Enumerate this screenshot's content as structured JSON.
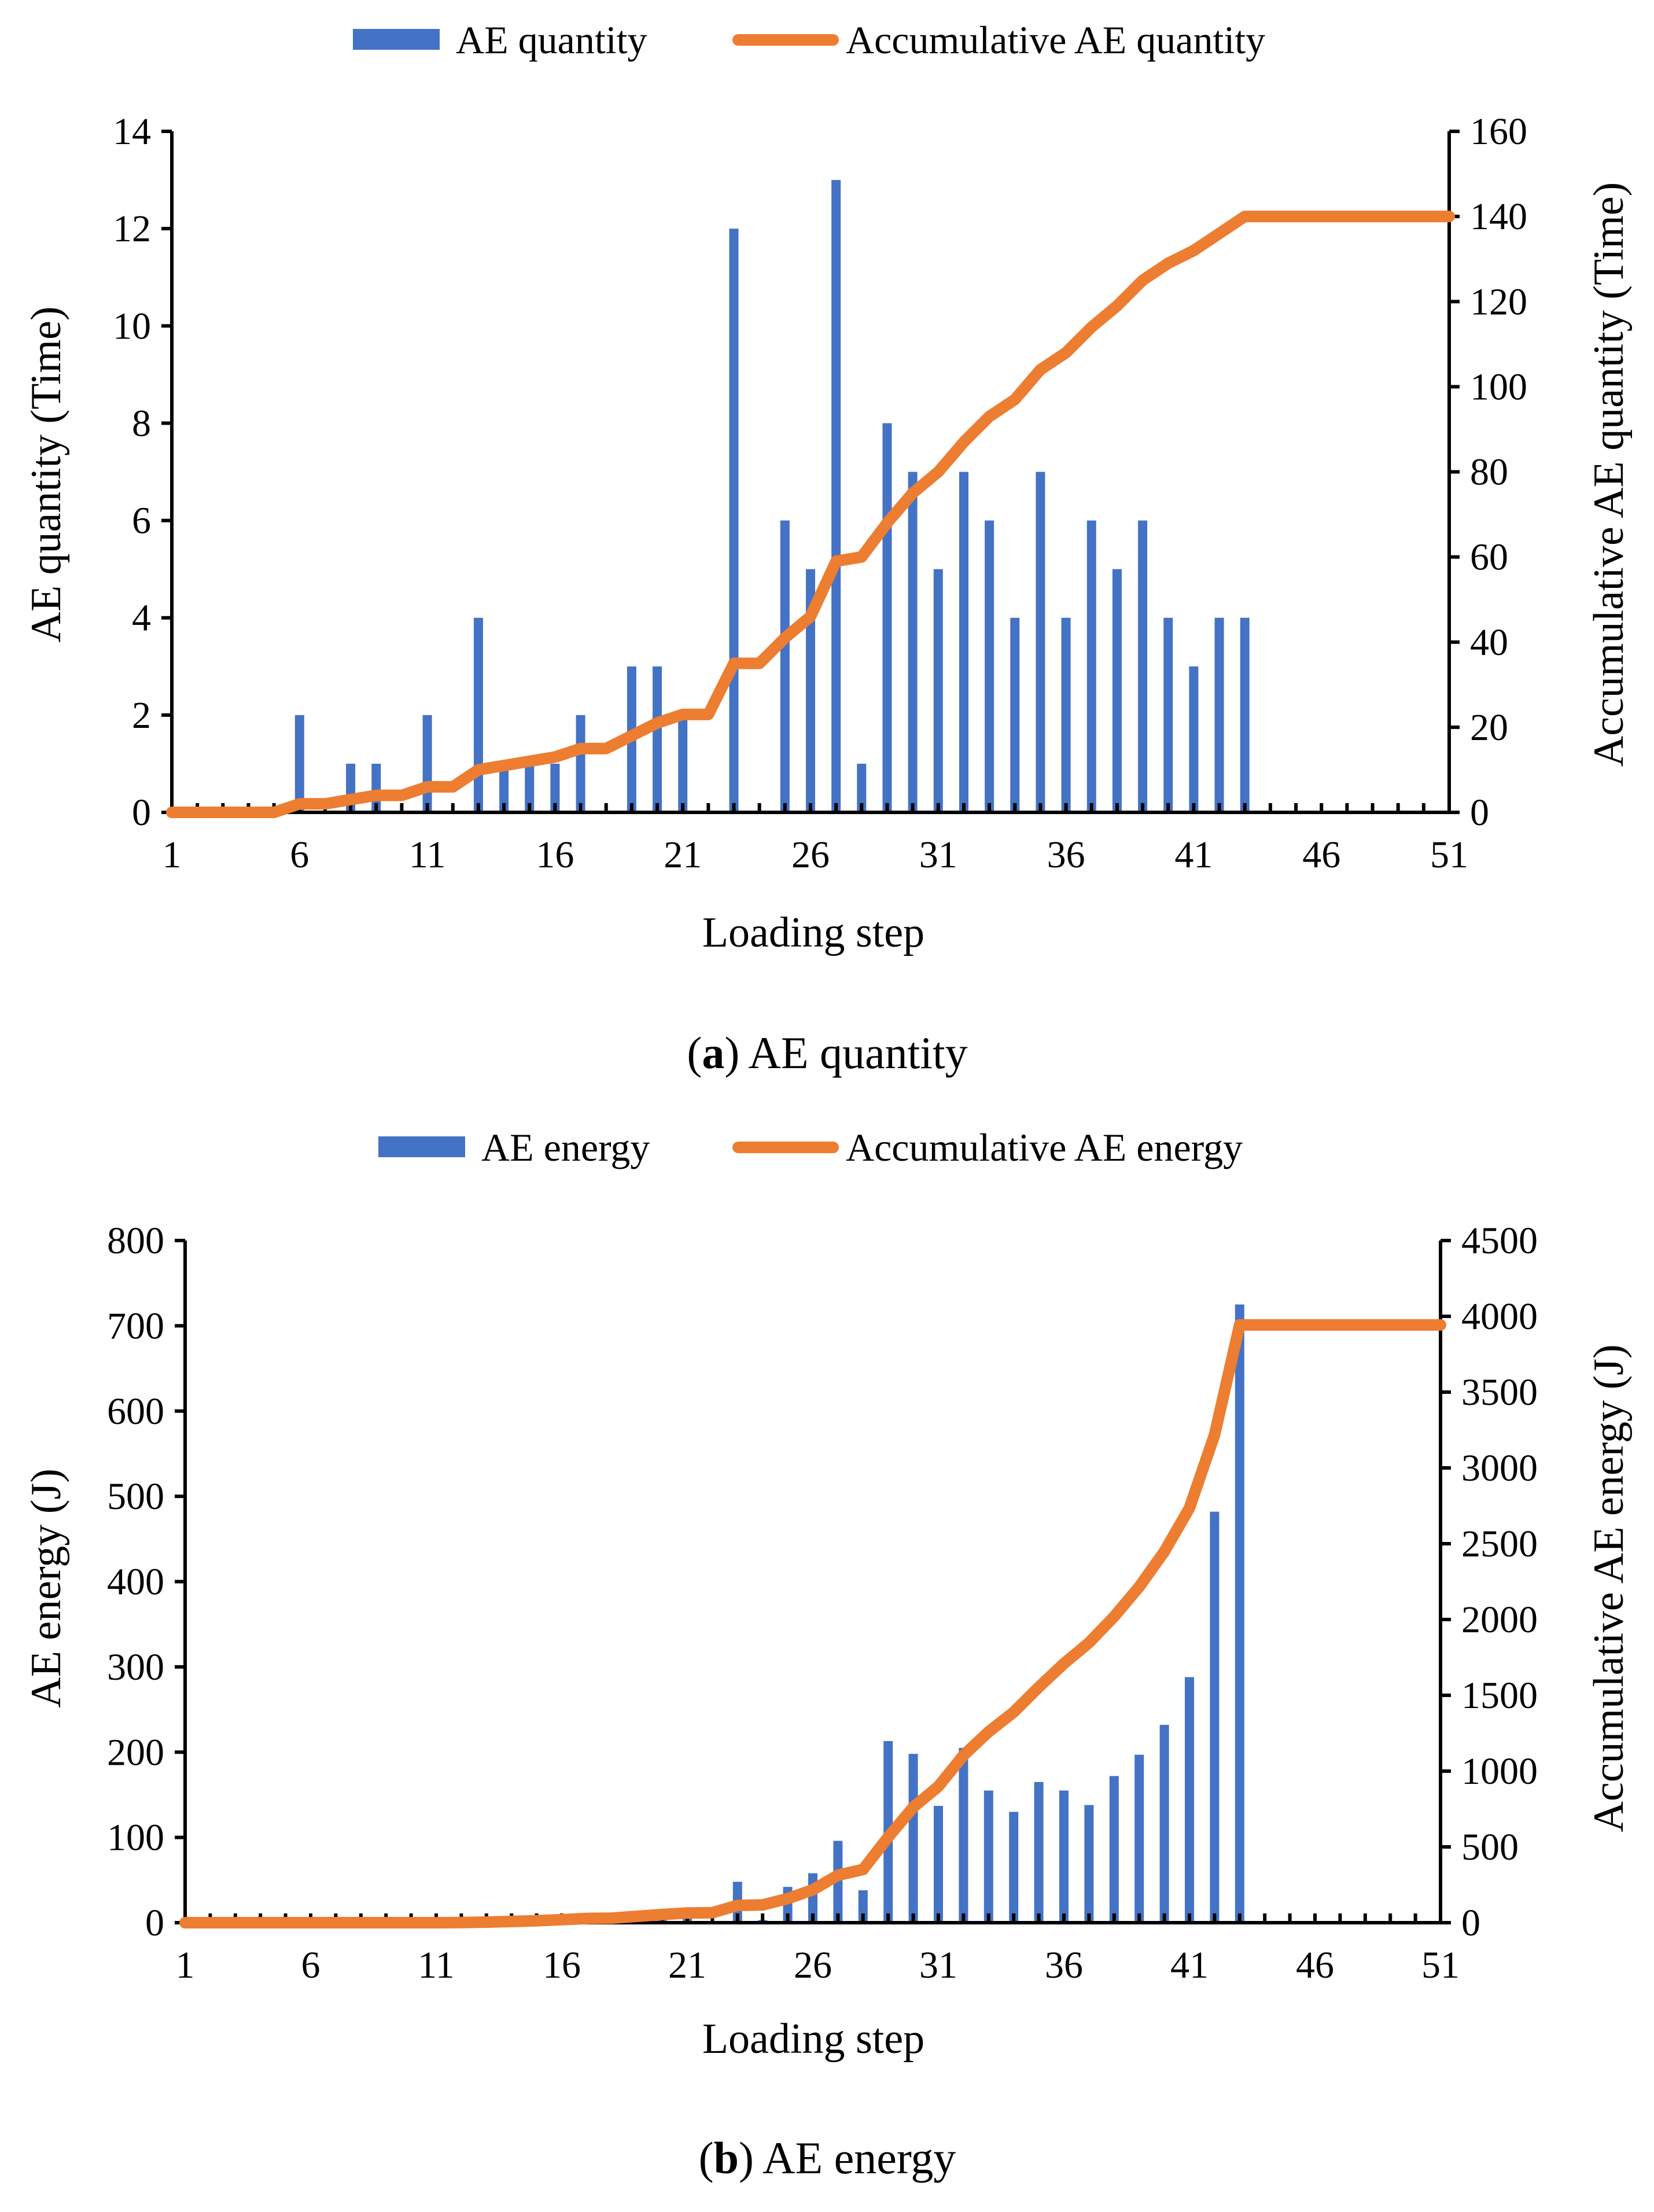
{
  "chart_data": [
    {
      "type": "bar+line",
      "panel": "a",
      "caption_letter": "a",
      "caption_text": " AE quantity",
      "xlabel": "Loading step",
      "ylabel_left": "AE quantity (Time)",
      "ylabel_right": "Accumulative AE quantity (Time)",
      "xlim": [
        1,
        51
      ],
      "x_ticks": [
        "1",
        "6",
        "11",
        "16",
        "21",
        "26",
        "31",
        "36",
        "41",
        "46",
        "51"
      ],
      "ylim_left": [
        0,
        14
      ],
      "y_ticks_left": [
        "0",
        "2",
        "4",
        "6",
        "8",
        "10",
        "12",
        "14"
      ],
      "ylim_right": [
        0,
        160
      ],
      "y_ticks_right": [
        "0",
        "20",
        "40",
        "60",
        "80",
        "100",
        "120",
        "140",
        "160"
      ],
      "legend": {
        "position": "top-center",
        "bar": "AE quantity",
        "line": "Accumulative AE quantity"
      },
      "colors": {
        "bar": "#4472C4",
        "line": "#ED7D31"
      },
      "steps": [
        1,
        2,
        3,
        4,
        5,
        6,
        7,
        8,
        9,
        10,
        11,
        12,
        13,
        14,
        15,
        16,
        17,
        18,
        19,
        20,
        21,
        22,
        23,
        24,
        25,
        26,
        27,
        28,
        29,
        30,
        31,
        32,
        33,
        34,
        35,
        36,
        37,
        38,
        39,
        40,
        41,
        42,
        43,
        44,
        45,
        46,
        47,
        48,
        49,
        50,
        51
      ],
      "bar_values": [
        0,
        0,
        0,
        0,
        0,
        2,
        0,
        1,
        1,
        0,
        2,
        0,
        4,
        1,
        1,
        1,
        2,
        0,
        3,
        3,
        2,
        0,
        12,
        0,
        6,
        5,
        13,
        1,
        8,
        7,
        5,
        7,
        6,
        4,
        7,
        4,
        6,
        5,
        6,
        4,
        3,
        4,
        4,
        0,
        0,
        0,
        0,
        0,
        0,
        0,
        0
      ],
      "line_values": [
        0,
        0,
        0,
        0,
        0,
        2,
        2,
        3,
        4,
        4,
        6,
        6,
        10,
        11,
        12,
        13,
        15,
        15,
        18,
        21,
        23,
        23,
        35,
        35,
        41,
        46,
        59,
        60,
        68,
        75,
        80,
        87,
        93,
        97,
        104,
        108,
        114,
        119,
        125,
        129,
        132,
        136,
        140,
        140,
        140,
        140,
        140,
        140,
        140,
        140,
        140
      ]
    },
    {
      "type": "bar+line",
      "panel": "b",
      "caption_letter": "b",
      "caption_text": " AE energy",
      "xlabel": "Loading step",
      "ylabel_left": "AE energy (J)",
      "ylabel_right": "Accumulative AE energy (J)",
      "xlim": [
        1,
        51
      ],
      "x_ticks": [
        "1",
        "6",
        "11",
        "16",
        "21",
        "26",
        "31",
        "36",
        "41",
        "46",
        "51"
      ],
      "ylim_left": [
        0,
        800
      ],
      "y_ticks_left": [
        "0",
        "100",
        "200",
        "300",
        "400",
        "500",
        "600",
        "700",
        "800"
      ],
      "ylim_right": [
        0,
        4500
      ],
      "y_ticks_right": [
        "0",
        "500",
        "1000",
        "1500",
        "2000",
        "2500",
        "3000",
        "3500",
        "4000",
        "4500"
      ],
      "legend": {
        "position": "top-center",
        "bar": "AE energy",
        "line": "Accumulative AE energy"
      },
      "colors": {
        "bar": "#4472C4",
        "line": "#ED7D31"
      },
      "steps": [
        1,
        2,
        3,
        4,
        5,
        6,
        7,
        8,
        9,
        10,
        11,
        12,
        13,
        14,
        15,
        16,
        17,
        18,
        19,
        20,
        21,
        22,
        23,
        24,
        25,
        26,
        27,
        28,
        29,
        30,
        31,
        32,
        33,
        34,
        35,
        36,
        37,
        38,
        39,
        40,
        41,
        42,
        43,
        44,
        45,
        46,
        47,
        48,
        49,
        50,
        51
      ],
      "bar_values": [
        0,
        0,
        0,
        0,
        0,
        0,
        0,
        0,
        0,
        0,
        0,
        1,
        3,
        4,
        5,
        7,
        8,
        2,
        12,
        12,
        10,
        2,
        48,
        3,
        42,
        58,
        96,
        38,
        213,
        198,
        137,
        205,
        155,
        130,
        165,
        155,
        138,
        172,
        197,
        232,
        288,
        482,
        725,
        0,
        0,
        0,
        0,
        0,
        0,
        0,
        0
      ],
      "line_values": [
        0,
        0,
        0,
        0,
        0,
        0,
        0,
        0,
        0,
        0,
        0,
        1,
        4,
        8,
        13,
        20,
        28,
        30,
        42,
        54,
        64,
        66,
        114,
        117,
        159,
        217,
        313,
        351,
        564,
        762,
        899,
        1104,
        1259,
        1389,
        1554,
        1709,
        1847,
        2019,
        2216,
        2448,
        2736,
        3218,
        3943,
        3943,
        3943,
        3943,
        3943,
        3943,
        3943,
        3943,
        3943
      ]
    }
  ]
}
